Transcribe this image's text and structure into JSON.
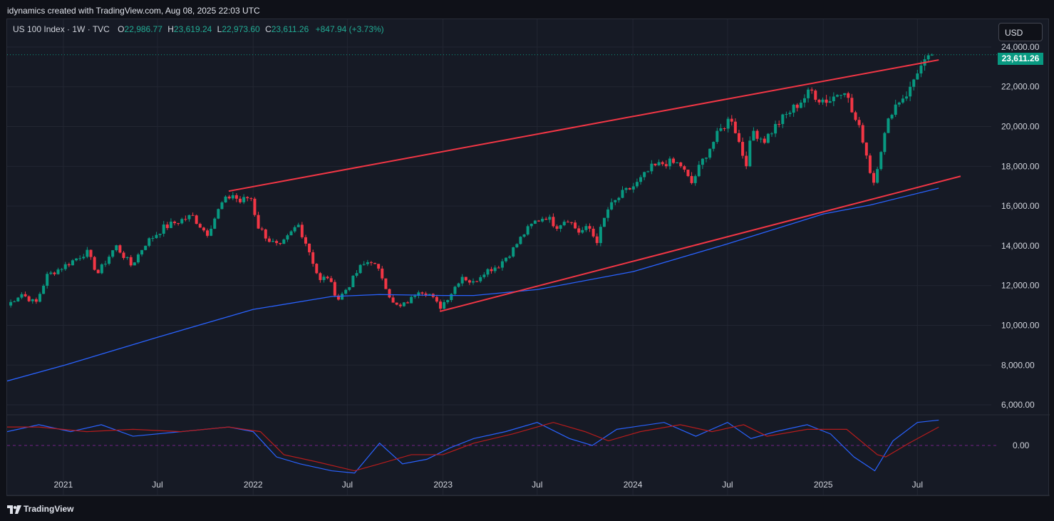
{
  "header": {
    "title": "idynamics created with TradingView.com, Aug 08, 2025 22:03 UTC"
  },
  "legend": {
    "symbol": "US 100 Index · 1W · TVC",
    "o_label": "O",
    "o_value": "22,986.77",
    "h_label": "H",
    "h_value": "23,619.24",
    "l_label": "L",
    "l_value": "22,973.60",
    "c_label": "C",
    "c_value": "23,611.26",
    "change": "+847.94 (+3.73%)"
  },
  "currency_button": {
    "label": "USD"
  },
  "last_price_tag": {
    "value": "23,611.26",
    "color": "#089981"
  },
  "footer": {
    "brand": "TradingView",
    "logo_icon": "tradingview-logo-icon"
  },
  "colors": {
    "background": "#161a25",
    "grid": "#222632",
    "up": "#089981",
    "down": "#f23645",
    "trendline": "#f23645",
    "ma": "#2962ff",
    "osc_fast": "#2962ff",
    "osc_slow": "#b71c1c"
  },
  "chart_data": {
    "type": "candlestick",
    "title": "US 100 Index · 1W · TVC",
    "x_tick_labels": [
      "2021",
      "Jul",
      "2022",
      "Jul",
      "2023",
      "Jul",
      "2024",
      "Jul",
      "2025",
      "Jul"
    ],
    "x_tick_dates": [
      "2021-01-01",
      "2021-07-01",
      "2022-01-01",
      "2022-07-01",
      "2023-01-01",
      "2023-07-01",
      "2024-01-01",
      "2024-07-01",
      "2025-01-01",
      "2025-07-01"
    ],
    "x_range": [
      "2020-09-15",
      "2025-11-20"
    ],
    "y_tick_labels": [
      "24,000.00",
      "22,000.00",
      "20,000.00",
      "18,000.00",
      "16,000.00",
      "14,000.00",
      "12,000.00",
      "10,000.00",
      "8,000.00",
      "6,000.00"
    ],
    "y_range": [
      5500,
      24500
    ],
    "grid": true,
    "close_path": [
      [
        "2020-09-15",
        11000
      ],
      [
        "2020-10-12",
        11600
      ],
      [
        "2020-11-09",
        11100
      ],
      [
        "2020-12-01",
        12500
      ],
      [
        "2021-01-04",
        13000
      ],
      [
        "2021-02-15",
        13700
      ],
      [
        "2021-03-08",
        12600
      ],
      [
        "2021-04-12",
        14000
      ],
      [
        "2021-05-12",
        13000
      ],
      [
        "2021-06-07",
        14100
      ],
      [
        "2021-07-12",
        14900
      ],
      [
        "2021-08-16",
        15300
      ],
      [
        "2021-09-06",
        15500
      ],
      [
        "2021-10-04",
        14600
      ],
      [
        "2021-11-01",
        16100
      ],
      [
        "2021-11-22",
        16600
      ],
      [
        "2021-12-06",
        16200
      ],
      [
        "2021-12-27",
        16500
      ],
      [
        "2022-01-10",
        15000
      ],
      [
        "2022-01-31",
        14300
      ],
      [
        "2022-02-21",
        13900
      ],
      [
        "2022-03-14",
        14600
      ],
      [
        "2022-03-28",
        15100
      ],
      [
        "2022-04-18",
        13800
      ],
      [
        "2022-05-09",
        12200
      ],
      [
        "2022-05-23",
        12500
      ],
      [
        "2022-06-13",
        11300
      ],
      [
        "2022-07-04",
        12000
      ],
      [
        "2022-07-25",
        12900
      ],
      [
        "2022-08-15",
        13300
      ],
      [
        "2022-09-05",
        12500
      ],
      [
        "2022-09-26",
        11100
      ],
      [
        "2022-10-10",
        10900
      ],
      [
        "2022-10-31",
        11300
      ],
      [
        "2022-11-14",
        11800
      ],
      [
        "2022-12-05",
        11600
      ],
      [
        "2022-12-26",
        10900
      ],
      [
        "2023-01-16",
        11600
      ],
      [
        "2023-02-06",
        12500
      ],
      [
        "2023-02-27",
        12100
      ],
      [
        "2023-03-20",
        12700
      ],
      [
        "2023-04-17",
        13000
      ],
      [
        "2023-05-15",
        13800
      ],
      [
        "2023-06-05",
        14600
      ],
      [
        "2023-06-26",
        15200
      ],
      [
        "2023-07-17",
        15500
      ],
      [
        "2023-08-07",
        15000
      ],
      [
        "2023-08-28",
        15400
      ],
      [
        "2023-09-18",
        14700
      ],
      [
        "2023-10-09",
        14900
      ],
      [
        "2023-10-23",
        14200
      ],
      [
        "2023-11-13",
        15800
      ],
      [
        "2023-12-11",
        16600
      ],
      [
        "2024-01-08",
        17100
      ],
      [
        "2024-02-05",
        17900
      ],
      [
        "2024-03-04",
        18200
      ],
      [
        "2024-04-01",
        18100
      ],
      [
        "2024-04-22",
        17100
      ],
      [
        "2024-05-20",
        18600
      ],
      [
        "2024-06-17",
        19800
      ],
      [
        "2024-07-08",
        20500
      ],
      [
        "2024-07-22",
        19300
      ],
      [
        "2024-08-05",
        18100
      ],
      [
        "2024-08-19",
        19800
      ],
      [
        "2024-09-09",
        19300
      ],
      [
        "2024-10-07",
        20200
      ],
      [
        "2024-11-04",
        20900
      ],
      [
        "2024-12-09",
        21800
      ],
      [
        "2024-12-23",
        21400
      ],
      [
        "2025-01-13",
        21300
      ],
      [
        "2025-02-10",
        22000
      ],
      [
        "2025-02-24",
        20800
      ],
      [
        "2025-03-17",
        19500
      ],
      [
        "2025-04-07",
        17100
      ],
      [
        "2025-04-21",
        18800
      ],
      [
        "2025-05-12",
        20800
      ],
      [
        "2025-05-26",
        21300
      ],
      [
        "2025-06-16",
        21800
      ],
      [
        "2025-06-30",
        22800
      ],
      [
        "2025-07-21",
        23300
      ],
      [
        "2025-08-04",
        23611
      ]
    ],
    "moving_average": [
      [
        "2020-09-15",
        7200
      ],
      [
        "2021-01-04",
        8000
      ],
      [
        "2021-07-01",
        9400
      ],
      [
        "2022-01-01",
        10800
      ],
      [
        "2022-06-01",
        11450
      ],
      [
        "2022-09-01",
        11550
      ],
      [
        "2023-01-01",
        11500
      ],
      [
        "2023-03-01",
        11500
      ],
      [
        "2023-07-01",
        11800
      ],
      [
        "2024-01-01",
        12700
      ],
      [
        "2024-07-01",
        14100
      ],
      [
        "2025-01-01",
        15600
      ],
      [
        "2025-04-01",
        16050
      ],
      [
        "2025-08-11",
        16900
      ]
    ],
    "trendlines": [
      {
        "from": [
          "2021-11-15",
          16750
        ],
        "to": [
          "2025-08-11",
          23350
        ]
      },
      {
        "from": [
          "2022-12-26",
          10700
        ],
        "to": [
          "2025-09-22",
          17500
        ]
      }
    ],
    "oscillator": {
      "y_tick_label": "0.00",
      "range": [
        -1.3,
        1.3
      ],
      "fast": [
        [
          "2020-09-15",
          0.6
        ],
        [
          "2020-11-15",
          0.9
        ],
        [
          "2021-01-15",
          0.6
        ],
        [
          "2021-03-15",
          0.9
        ],
        [
          "2021-05-15",
          0.4
        ],
        [
          "2021-08-15",
          0.6
        ],
        [
          "2021-11-15",
          0.8
        ],
        [
          "2022-01-01",
          0.6
        ],
        [
          "2022-02-15",
          -0.5
        ],
        [
          "2022-04-01",
          -0.8
        ],
        [
          "2022-06-01",
          -1.1
        ],
        [
          "2022-07-15",
          -1.2
        ],
        [
          "2022-09-01",
          0.1
        ],
        [
          "2022-10-15",
          -0.8
        ],
        [
          "2022-12-01",
          -0.6
        ],
        [
          "2023-01-15",
          -0.1
        ],
        [
          "2023-03-01",
          0.3
        ],
        [
          "2023-05-01",
          0.6
        ],
        [
          "2023-07-01",
          1.0
        ],
        [
          "2023-09-01",
          0.3
        ],
        [
          "2023-10-15",
          0.0
        ],
        [
          "2023-12-01",
          0.7
        ],
        [
          "2024-03-01",
          1.0
        ],
        [
          "2024-05-01",
          0.4
        ],
        [
          "2024-07-01",
          1.0
        ],
        [
          "2024-08-15",
          0.3
        ],
        [
          "2024-10-01",
          0.6
        ],
        [
          "2024-12-01",
          0.9
        ],
        [
          "2025-01-15",
          0.5
        ],
        [
          "2025-03-01",
          -0.5
        ],
        [
          "2025-04-10",
          -1.1
        ],
        [
          "2025-05-15",
          0.2
        ],
        [
          "2025-07-01",
          1.0
        ],
        [
          "2025-08-11",
          1.1
        ]
      ],
      "slow": [
        [
          "2020-09-15",
          0.8
        ],
        [
          "2020-11-15",
          0.8
        ],
        [
          "2021-02-15",
          0.6
        ],
        [
          "2021-05-15",
          0.7
        ],
        [
          "2021-08-15",
          0.6
        ],
        [
          "2021-11-15",
          0.8
        ],
        [
          "2022-01-15",
          0.6
        ],
        [
          "2022-03-01",
          -0.4
        ],
        [
          "2022-05-01",
          -0.7
        ],
        [
          "2022-07-15",
          -1.1
        ],
        [
          "2022-09-01",
          -0.8
        ],
        [
          "2022-11-01",
          -0.4
        ],
        [
          "2023-01-01",
          -0.4
        ],
        [
          "2023-03-01",
          0.1
        ],
        [
          "2023-05-15",
          0.5
        ],
        [
          "2023-08-01",
          1.0
        ],
        [
          "2023-10-01",
          0.6
        ],
        [
          "2023-11-15",
          0.2
        ],
        [
          "2024-01-15",
          0.6
        ],
        [
          "2024-04-01",
          0.9
        ],
        [
          "2024-06-01",
          0.6
        ],
        [
          "2024-08-01",
          0.9
        ],
        [
          "2024-09-15",
          0.4
        ],
        [
          "2024-12-01",
          0.7
        ],
        [
          "2025-02-15",
          0.7
        ],
        [
          "2025-04-15",
          -0.4
        ],
        [
          "2025-05-01",
          -0.5
        ],
        [
          "2025-06-15",
          0.1
        ],
        [
          "2025-08-11",
          0.8
        ]
      ]
    }
  }
}
